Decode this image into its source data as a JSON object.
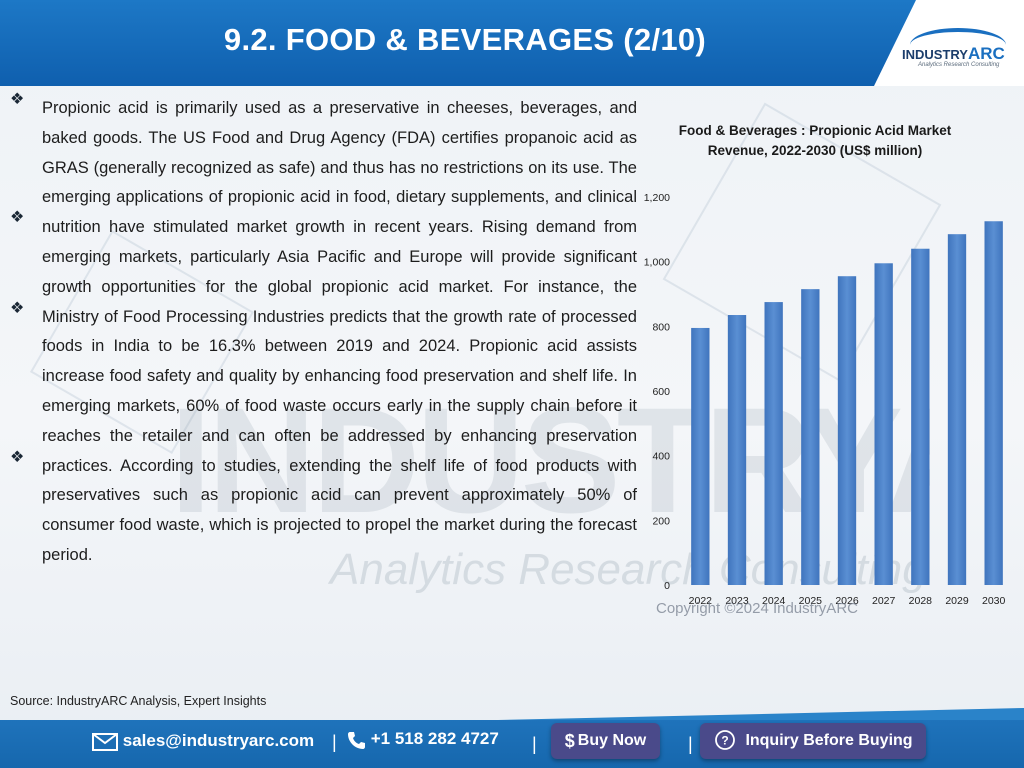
{
  "header": {
    "title": "9.2. FOOD & BEVERAGES (2/10)",
    "logo_main": "INDUSTRY",
    "logo_arc": "ARC",
    "logo_tagline": "Analytics Research Consulting"
  },
  "body": {
    "paragraph": "Propionic acid is primarily used as a preservative in cheeses, beverages, and baked goods. The US Food and Drug Agency (FDA) certifies propanoic acid as GRAS (generally recognized as safe) and thus has no restrictions on its use. The emerging applications of propionic acid in food, dietary supplements, and clinical nutrition have stimulated market growth in recent years. Rising demand from emerging markets, particularly Asia Pacific and Europe will provide significant growth opportunities for the global propionic acid market. For instance, the Ministry of Food Processing Industries predicts that the growth rate of processed foods in India to be 16.3% between 2019 and 2024. Propionic acid assists increase food safety and quality by enhancing food preservation and shelf life. In emerging markets, 60% of food waste occurs early in the supply chain before it reaches the retailer and can often be addressed by enhancing preservation practices. According to studies, extending the shelf life of food products with preservatives such as propionic acid can prevent approximately 50% of consumer food waste, which is projected to propel the market during the forecast period.",
    "source": "Source: IndustryARC Analysis, Expert Insights"
  },
  "watermark": {
    "main": "INDUSTRYARC",
    "sub": "Analytics Research Consulting",
    "copyright": "Copyright ©2024 IndustryARC"
  },
  "footer": {
    "email": "sales@industryarc.com",
    "phone": "+1 518 282 4727",
    "buy_now": "Buy Now",
    "inquiry": "Inquiry Before Buying",
    "separator": "|"
  },
  "colors": {
    "header_blue": "#1567b5",
    "bar_blue": "#4a7fc4",
    "footer_blue": "#1f73bb",
    "button_purple": "#4a4a8a"
  },
  "chart_data": {
    "type": "bar",
    "title": "Food & Beverages : Propionic Acid Market Revenue, 2022-2030 (US$ million)",
    "categories": [
      "2022",
      "2023",
      "2024",
      "2025",
      "2026",
      "2027",
      "2028",
      "2029",
      "2030"
    ],
    "values": [
      795,
      835,
      875,
      915,
      955,
      995,
      1040,
      1085,
      1125
    ],
    "yticks": [
      "0",
      "200",
      "400",
      "600",
      "800",
      "1,000",
      "1,200"
    ],
    "ylim": [
      0,
      1200
    ],
    "grid": false,
    "legend": "none"
  }
}
